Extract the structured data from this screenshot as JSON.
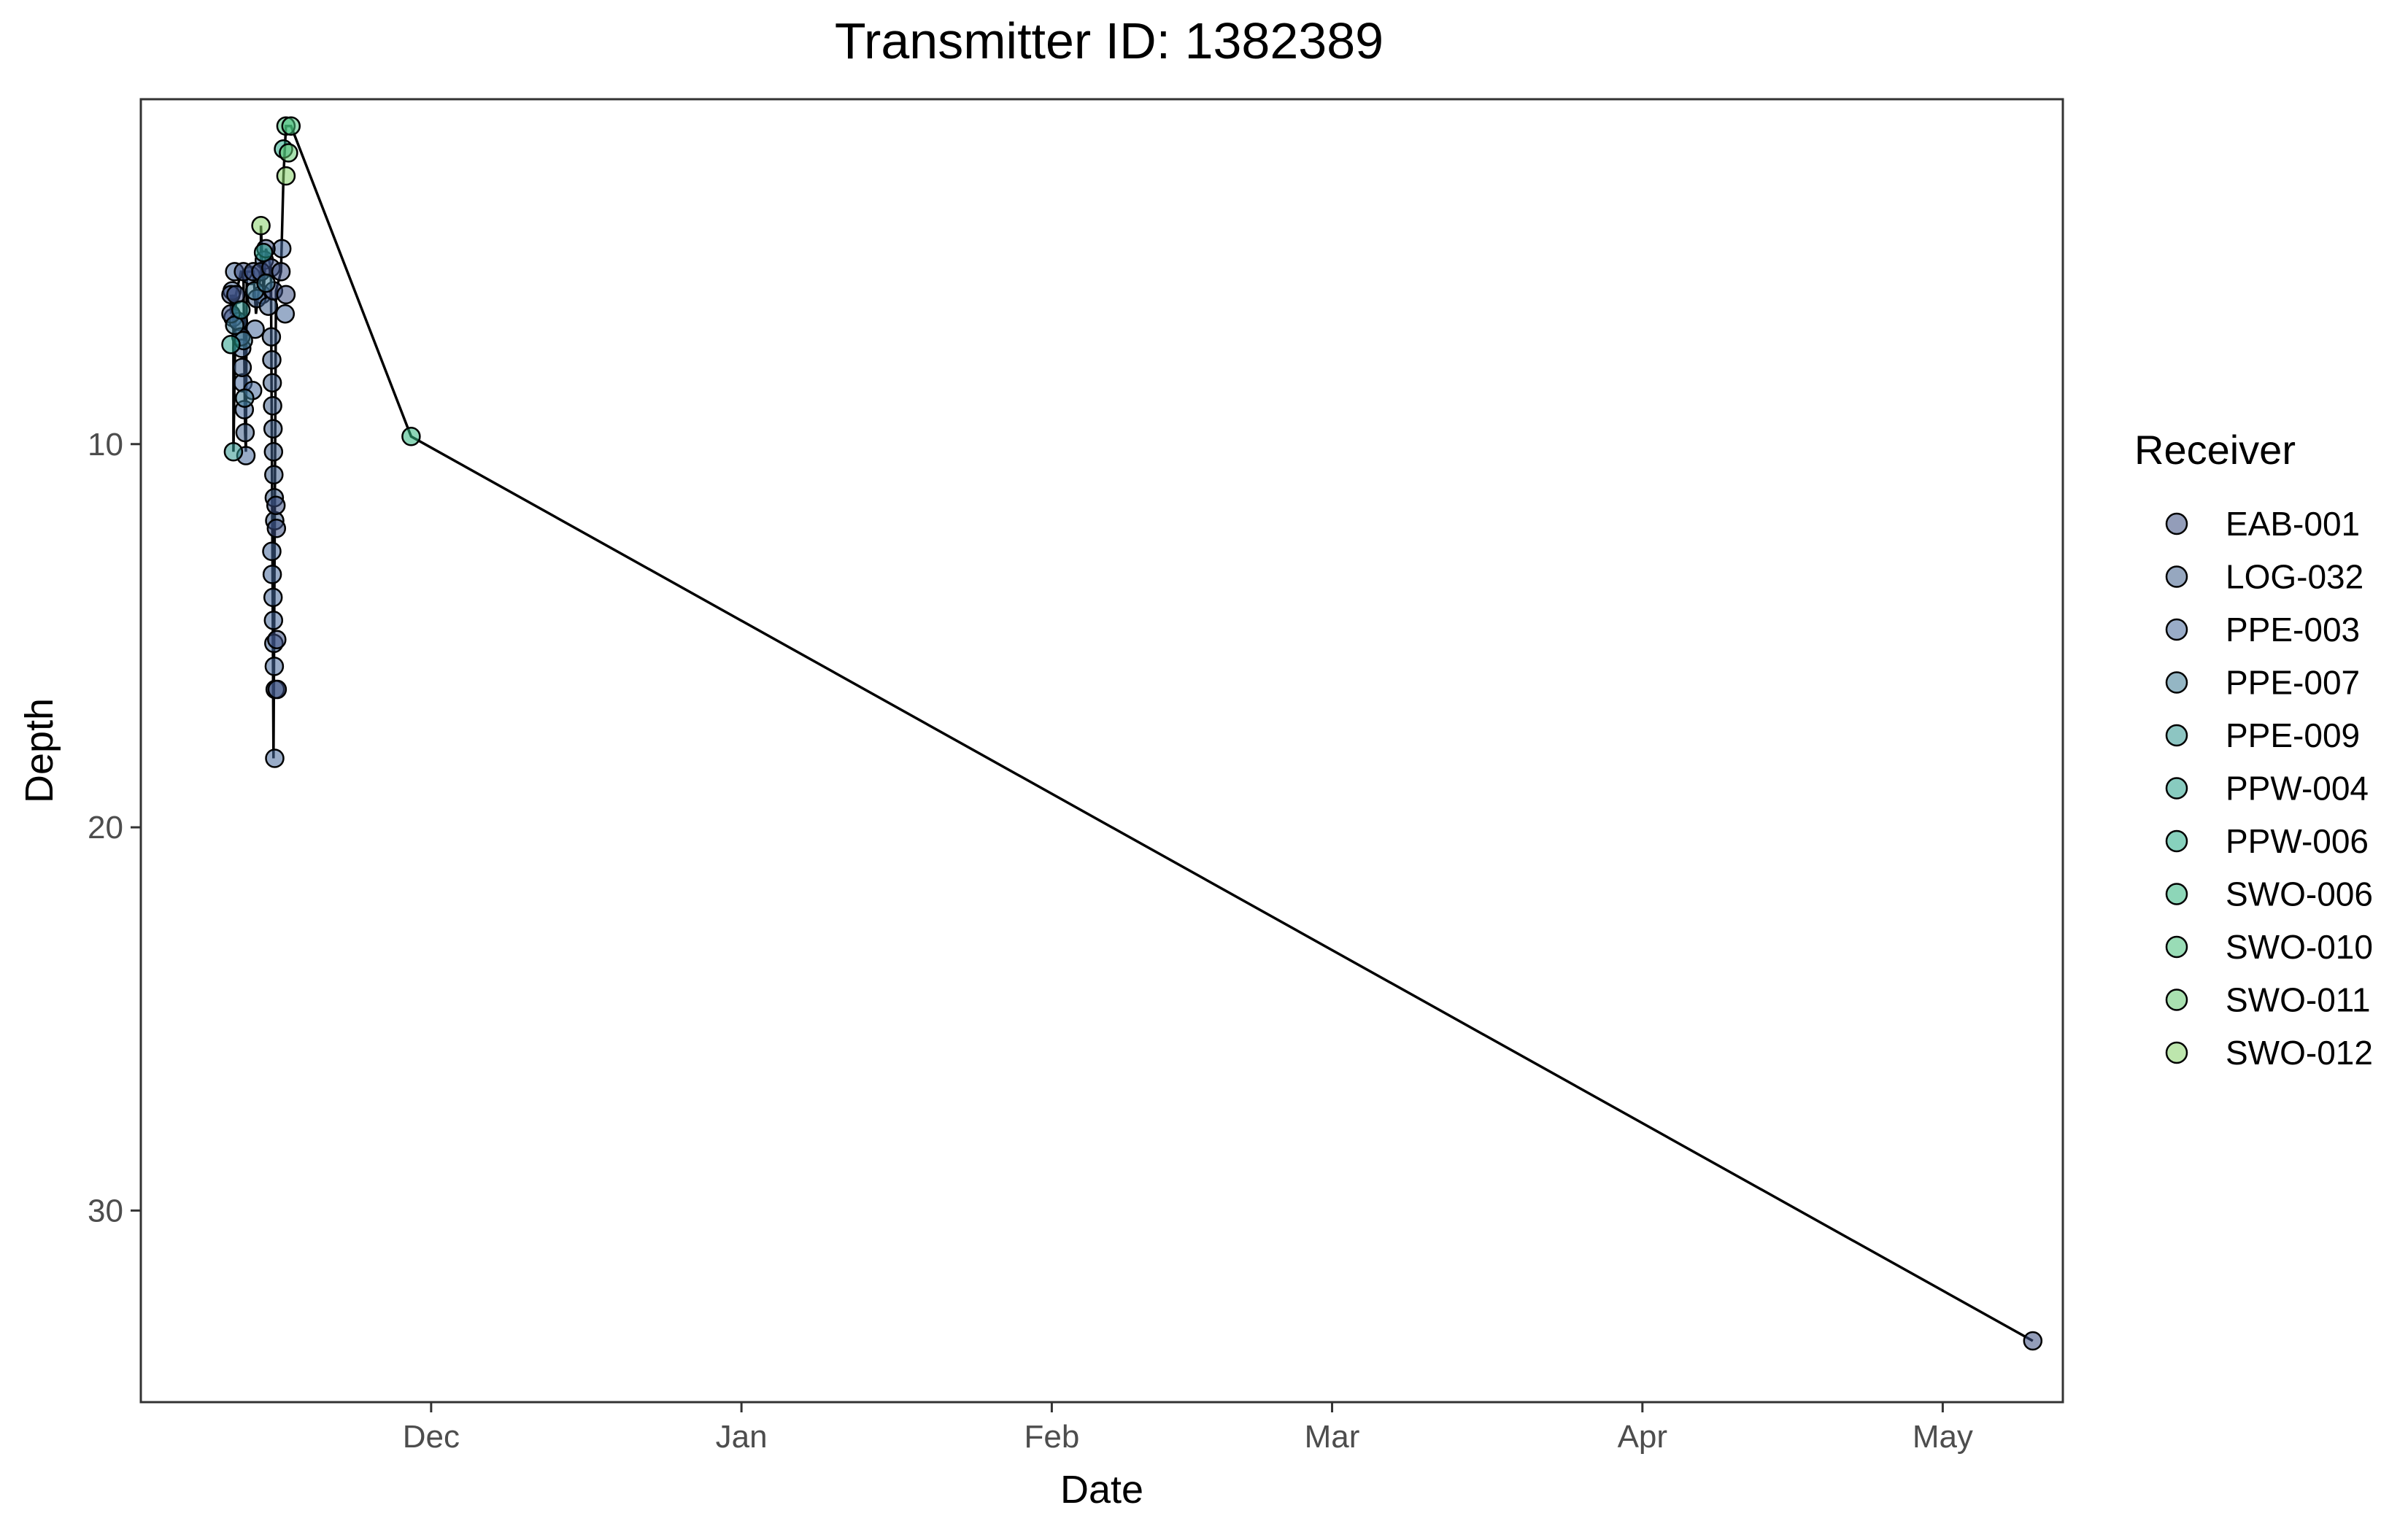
{
  "chart_data": {
    "type": "scatter",
    "title": "Transmitter ID: 1382389",
    "xlabel": "Date",
    "ylabel": "Depth",
    "x_axis": {
      "kind": "date",
      "range": [
        "2021-11-02",
        "2022-05-13"
      ],
      "ticks": [
        {
          "date": "2021-12-01",
          "label": "Dec"
        },
        {
          "date": "2022-01-01",
          "label": "Jan"
        },
        {
          "date": "2022-02-01",
          "label": "Feb"
        },
        {
          "date": "2022-03-01",
          "label": "Mar"
        },
        {
          "date": "2022-04-01",
          "label": "Apr"
        },
        {
          "date": "2022-05-01",
          "label": "May"
        }
      ]
    },
    "y_axis": {
      "reversed": true,
      "range": [
        1.0,
        35.0
      ],
      "ticks": [
        10,
        20,
        30
      ]
    },
    "grid": false,
    "legend": {
      "title": "Receiver",
      "placement": "right",
      "entries": [
        "EAB-001",
        "LOG-032",
        "PPE-003",
        "PPE-007",
        "PPE-009",
        "PPW-004",
        "PPW-006",
        "SWO-006",
        "SWO-010",
        "SWO-011",
        "SWO-012"
      ]
    },
    "colors": {
      "EAB-001": "#3b4d80",
      "LOG-032": "#3f5f8a",
      "PPE-003": "#46689a",
      "PPE-007": "#3c7a94",
      "PPE-009": "#2f9590",
      "PPW-004": "#27a08a",
      "PPW-006": "#24ac86",
      "SWO-006": "#2fb57e",
      "SWO-010": "#46c07a",
      "SWO-011": "#62c96f",
      "SWO-012": "#86d26a",
      "line": "#000000",
      "point_stroke": "#000000",
      "panel_border": "#333333"
    },
    "series": [
      {
        "name": "PPE-003",
        "points": [
          {
            "x": "2021-11-11T03:00",
            "y": 6.0
          },
          {
            "x": "2021-11-11T05:00",
            "y": 6.7
          },
          {
            "x": "2021-11-11T09:00",
            "y": 5.5
          },
          {
            "x": "2021-11-12T02:00",
            "y": 7.5
          },
          {
            "x": "2021-11-12T05:00",
            "y": 8.4
          },
          {
            "x": "2021-11-12T08:00",
            "y": 9.1
          },
          {
            "x": "2021-11-12T12:00",
            "y": 10.3
          },
          {
            "x": "2021-11-13T04:00",
            "y": 8.6
          },
          {
            "x": "2021-11-13T10:00",
            "y": 7.0
          },
          {
            "x": "2021-11-14T02:00",
            "y": 6.1
          },
          {
            "x": "2021-11-14T08:00",
            "y": 5.2
          },
          {
            "x": "2021-11-15T02:00",
            "y": 12.8
          },
          {
            "x": "2021-11-15T03:00",
            "y": 13.4
          },
          {
            "x": "2021-11-15T05:00",
            "y": 14.0
          },
          {
            "x": "2021-11-15T06:00",
            "y": 14.6
          },
          {
            "x": "2021-11-15T07:00",
            "y": 15.2
          },
          {
            "x": "2021-11-15T08:00",
            "y": 15.8
          },
          {
            "x": "2021-11-15T09:00",
            "y": 18.2
          },
          {
            "x": "2021-11-16T02:00",
            "y": 4.9
          },
          {
            "x": "2021-11-16T10:00",
            "y": 6.6
          }
        ]
      },
      {
        "name": "LOG-032",
        "points": [
          {
            "x": "2021-11-11T18:00",
            "y": 6.8
          },
          {
            "x": "2021-11-12T00:00",
            "y": 7.2
          },
          {
            "x": "2021-11-12T03:00",
            "y": 8.0
          },
          {
            "x": "2021-11-12T10:00",
            "y": 9.7
          },
          {
            "x": "2021-11-13T00:00",
            "y": 5.6
          },
          {
            "x": "2021-11-13T14:00",
            "y": 6.2
          },
          {
            "x": "2021-11-14T18:00",
            "y": 6.4
          },
          {
            "x": "2021-11-15T01:00",
            "y": 7.2
          },
          {
            "x": "2021-11-15T02:00",
            "y": 7.8
          },
          {
            "x": "2021-11-15T03:00",
            "y": 8.4
          },
          {
            "x": "2021-11-15T04:00",
            "y": 9.0
          },
          {
            "x": "2021-11-15T05:00",
            "y": 9.6
          },
          {
            "x": "2021-11-15T06:00",
            "y": 10.2
          },
          {
            "x": "2021-11-15T07:00",
            "y": 10.8
          },
          {
            "x": "2021-11-15T08:00",
            "y": 11.4
          },
          {
            "x": "2021-11-15T09:00",
            "y": 12.0
          },
          {
            "x": "2021-11-15T10:00",
            "y": 16.4
          }
        ]
      },
      {
        "name": "EAB-001",
        "points": [
          {
            "x": "2021-11-11T00:00",
            "y": 6.1
          },
          {
            "x": "2021-11-11T00:00",
            "y": 6.6
          },
          {
            "x": "2021-11-11T12:00",
            "y": 6.1
          },
          {
            "x": "2021-11-12T06:00",
            "y": 5.5
          },
          {
            "x": "2021-11-13T06:00",
            "y": 5.5
          },
          {
            "x": "2021-11-14T00:00",
            "y": 5.5
          },
          {
            "x": "2021-11-14T12:00",
            "y": 4.9
          },
          {
            "x": "2021-11-15T00:00",
            "y": 5.4
          },
          {
            "x": "2021-11-15T06:00",
            "y": 6.0
          },
          {
            "x": "2021-11-16T00:00",
            "y": 5.5
          },
          {
            "x": "2021-11-16T12:00",
            "y": 6.1
          },
          {
            "x": "2021-11-15T12:00",
            "y": 11.6
          },
          {
            "x": "2021-11-15T13:00",
            "y": 12.2
          },
          {
            "x": "2021-11-15T14:00",
            "y": 15.1
          },
          {
            "x": "2021-11-15T15:00",
            "y": 16.4
          },
          {
            "x": "2022-05-10T00:00",
            "y": 33.4
          }
        ]
      },
      {
        "name": "PPE-007",
        "points": [
          {
            "x": "2021-11-11T09:00",
            "y": 6.9
          },
          {
            "x": "2021-11-12T06:00",
            "y": 7.3
          },
          {
            "x": "2021-11-12T09:00",
            "y": 8.8
          },
          {
            "x": "2021-11-13T09:00",
            "y": 6.0
          },
          {
            "x": "2021-11-14T12:00",
            "y": 5.8
          }
        ]
      },
      {
        "name": "PPE-009",
        "points": [
          {
            "x": "2021-11-11T06:00",
            "y": 10.2
          },
          {
            "x": "2021-11-12T00:00",
            "y": 6.5
          }
        ]
      },
      {
        "name": "PPW-004",
        "points": [
          {
            "x": "2021-11-11T00:00",
            "y": 7.4
          },
          {
            "x": "2021-11-14T06:00",
            "y": 5.0
          }
        ]
      },
      {
        "name": "PPW-006",
        "points": [
          {
            "x": "2021-11-16T06:00",
            "y": 2.3
          }
        ]
      },
      {
        "name": "SWO-006",
        "points": [
          {
            "x": "2021-11-29T00:00",
            "y": 9.8
          }
        ]
      },
      {
        "name": "SWO-010",
        "points": [
          {
            "x": "2021-11-16T12:00",
            "y": 1.7
          },
          {
            "x": "2021-11-17T00:00",
            "y": 1.7
          }
        ]
      },
      {
        "name": "SWO-011",
        "points": [
          {
            "x": "2021-11-16T18:00",
            "y": 2.4
          }
        ]
      },
      {
        "name": "SWO-012",
        "points": [
          {
            "x": "2021-11-14T00:00",
            "y": 4.3
          },
          {
            "x": "2021-11-16T12:00",
            "y": 3.0
          }
        ]
      }
    ],
    "track": [
      {
        "x": "2021-11-11T00:00",
        "y": 6.1
      },
      {
        "x": "2021-11-11T00:00",
        "y": 6.6
      },
      {
        "x": "2021-11-11T06:00",
        "y": 6.1
      },
      {
        "x": "2021-11-11T06:00",
        "y": 10.2
      },
      {
        "x": "2021-11-11T12:00",
        "y": 6.1
      },
      {
        "x": "2021-11-12T00:00",
        "y": 5.5
      },
      {
        "x": "2021-11-12T06:00",
        "y": 5.5
      },
      {
        "x": "2021-11-12T10:00",
        "y": 9.7
      },
      {
        "x": "2021-11-12T12:00",
        "y": 10.2
      },
      {
        "x": "2021-11-12T14:00",
        "y": 5.5
      },
      {
        "x": "2021-11-13T06:00",
        "y": 5.5
      },
      {
        "x": "2021-11-13T12:00",
        "y": 6.6
      },
      {
        "x": "2021-11-14T00:00",
        "y": 5.5
      },
      {
        "x": "2021-11-14T00:00",
        "y": 4.3
      },
      {
        "x": "2021-11-14T06:00",
        "y": 6.1
      },
      {
        "x": "2021-11-14T12:00",
        "y": 4.9
      },
      {
        "x": "2021-11-15T00:00",
        "y": 5.4
      },
      {
        "x": "2021-11-15T06:00",
        "y": 18.2
      },
      {
        "x": "2021-11-15T12:00",
        "y": 6.0
      },
      {
        "x": "2021-11-16T00:00",
        "y": 5.5
      },
      {
        "x": "2021-11-16T06:00",
        "y": 3.0
      },
      {
        "x": "2021-11-16T12:00",
        "y": 1.7
      },
      {
        "x": "2021-11-17T00:00",
        "y": 1.7
      },
      {
        "x": "2021-11-29T00:00",
        "y": 9.8
      },
      {
        "x": "2022-05-10T00:00",
        "y": 33.4
      }
    ]
  }
}
